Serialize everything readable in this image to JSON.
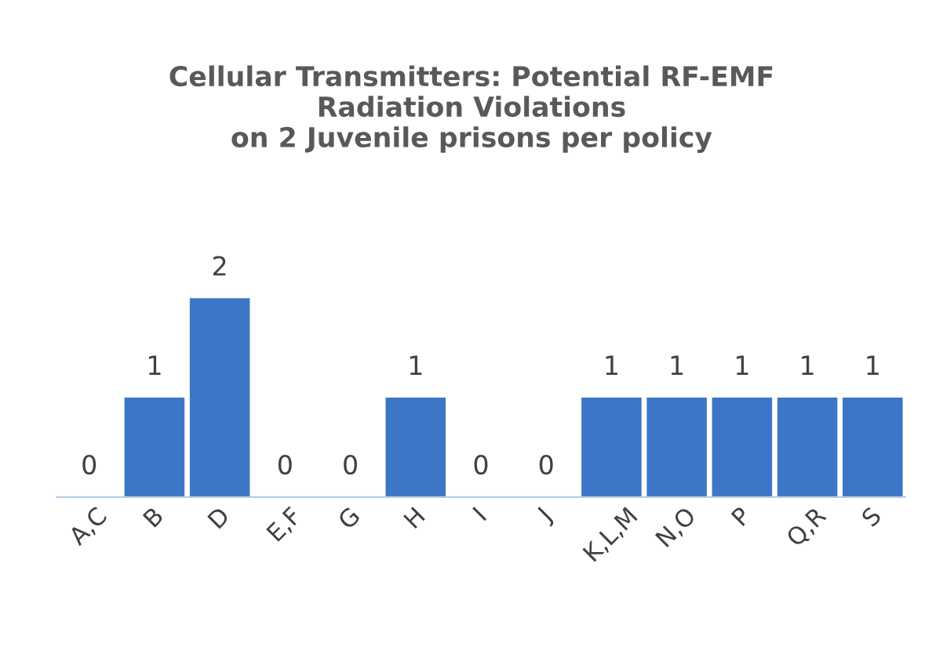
{
  "chart_data": {
    "type": "bar",
    "title": "Cellular Transmitters: Potential RF-EMF\nRadiation Violations\non 2 Juvenile prisons per policy",
    "categories": [
      "A,C",
      "B",
      "D",
      "E,F",
      "G",
      "H",
      "I",
      "J",
      "K,L,M",
      "N,O",
      "P",
      "Q,R",
      "S"
    ],
    "values": [
      0,
      1,
      2,
      0,
      0,
      1,
      0,
      0,
      1,
      1,
      1,
      1,
      1
    ],
    "color": "#3c76c6",
    "data_labels": true,
    "grid": false,
    "legend": false,
    "tick_labels": "x"
  }
}
